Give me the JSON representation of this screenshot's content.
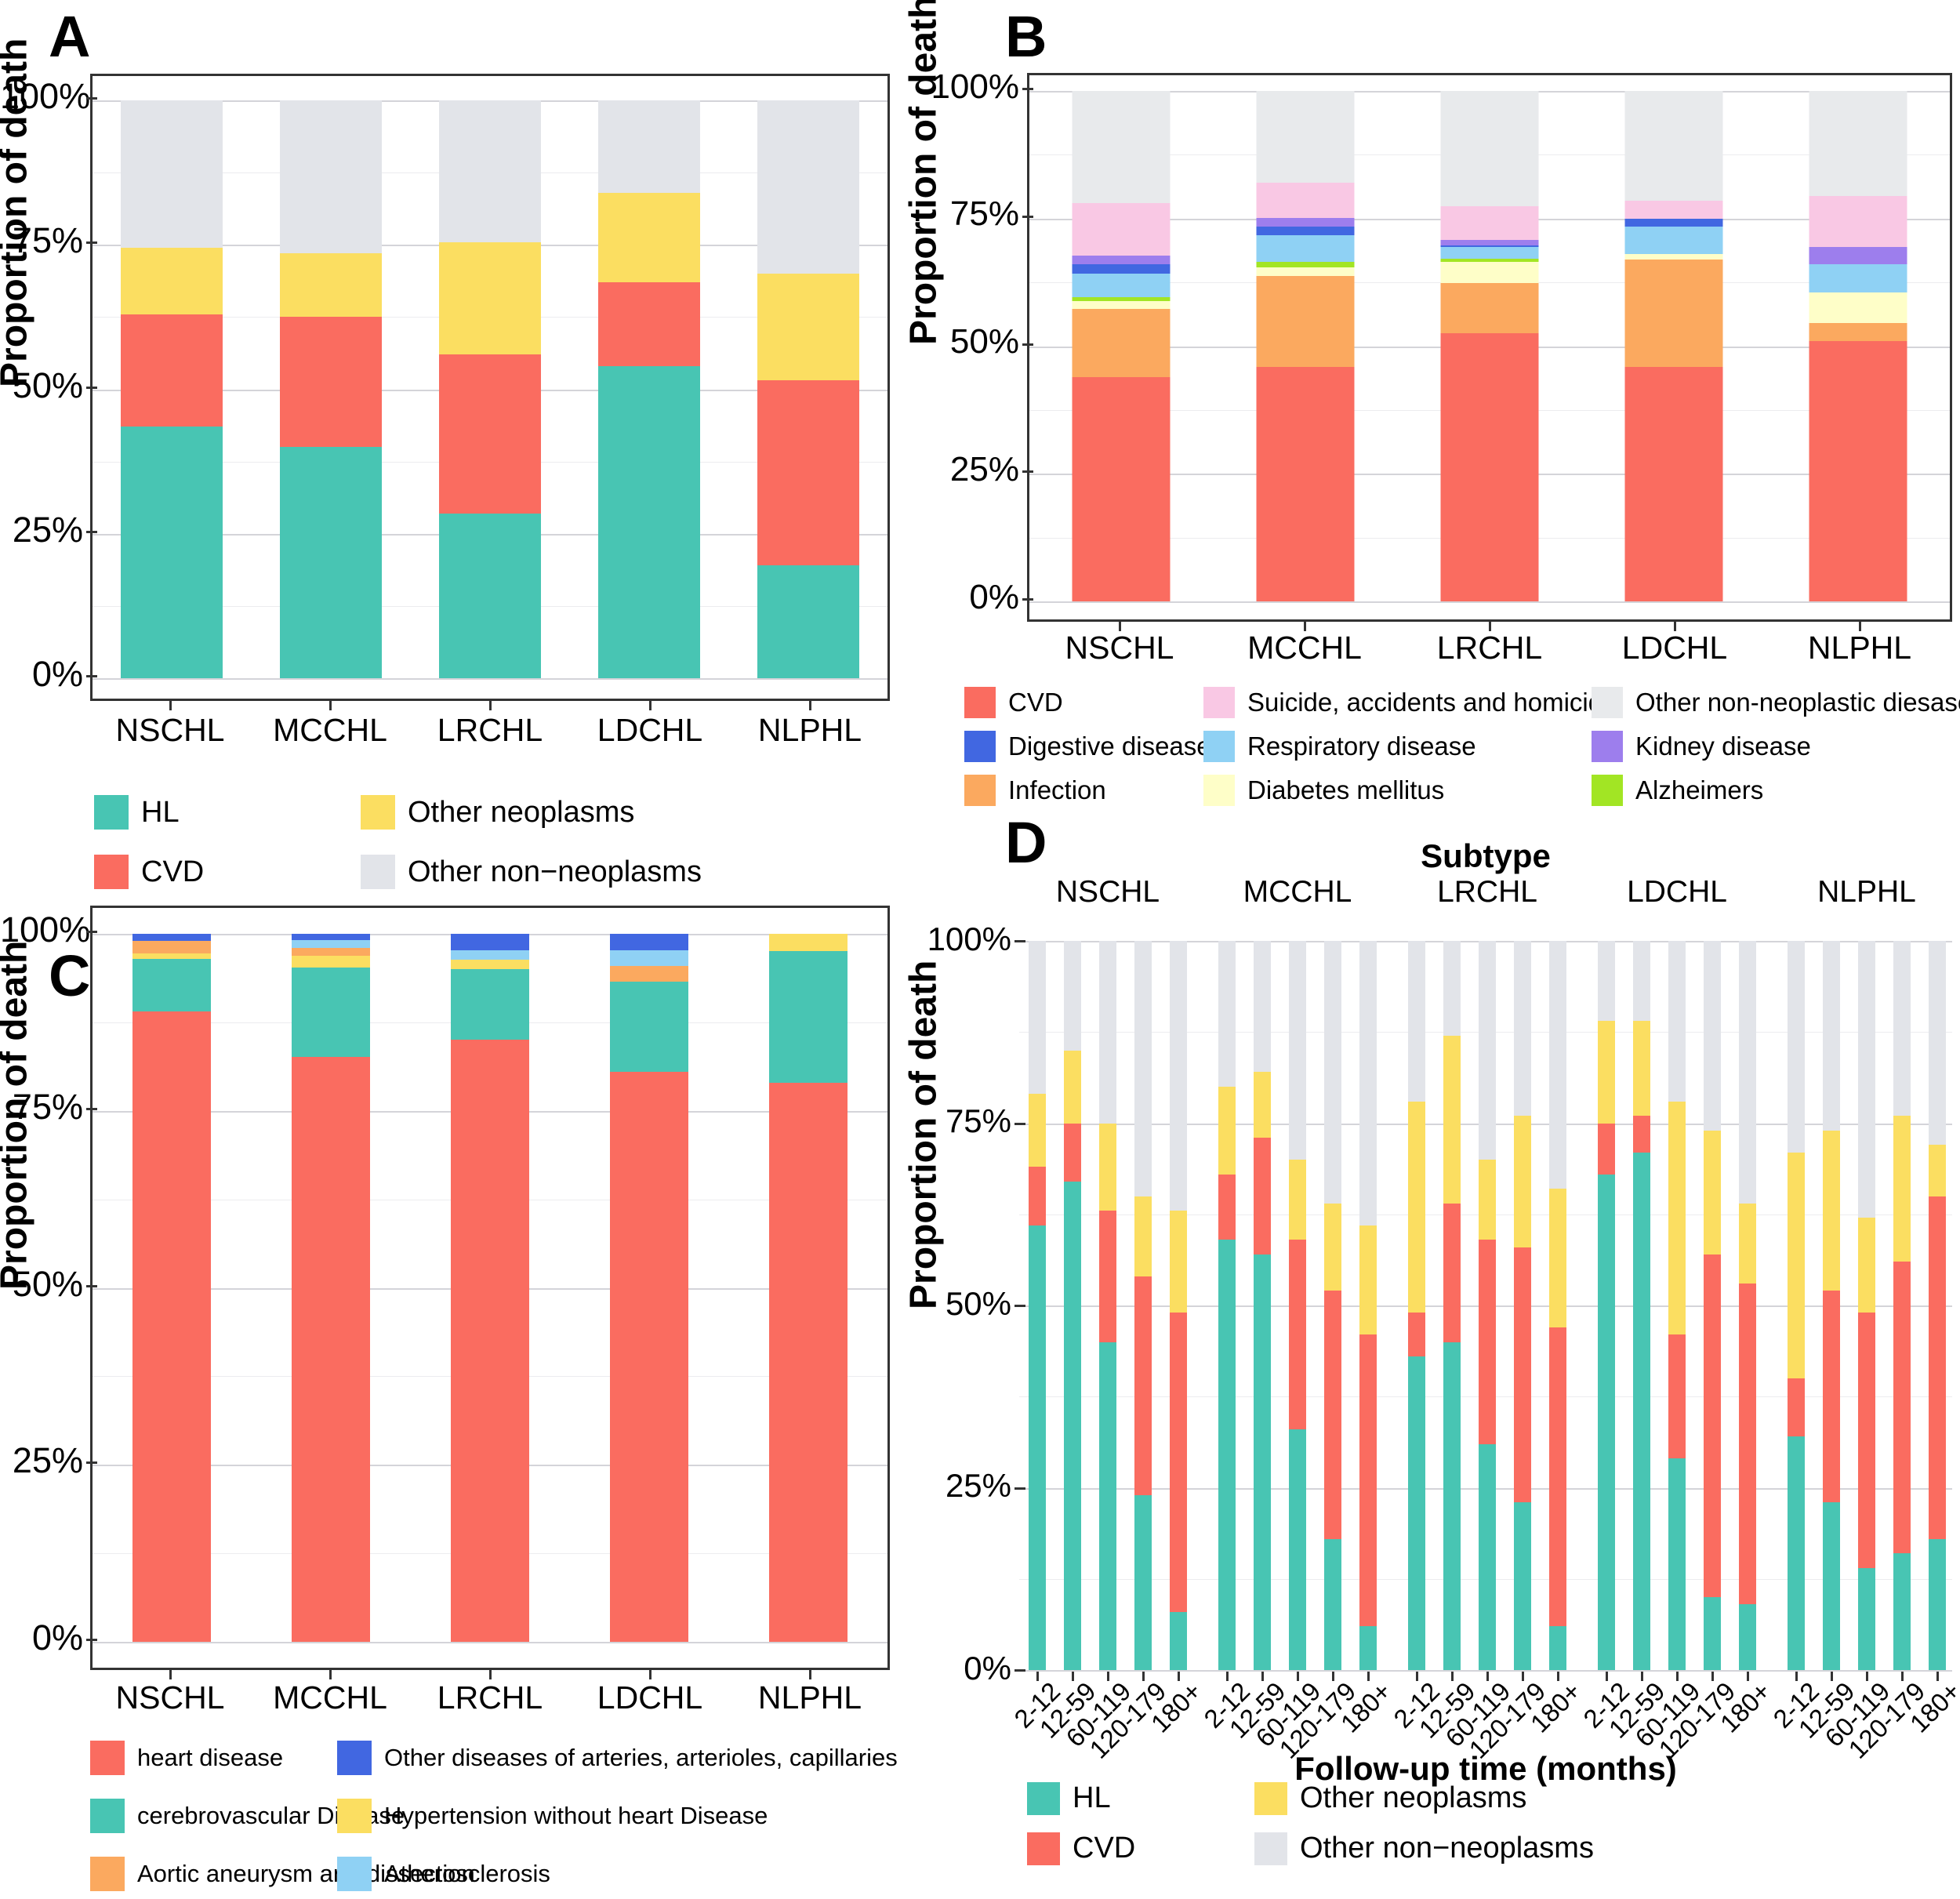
{
  "figure": {
    "panel_labels": [
      "A",
      "B",
      "C",
      "D"
    ],
    "y_axis_title": "Proportion of death",
    "y_ticks": [
      "0%",
      "25%",
      "50%",
      "75%",
      "100%"
    ]
  },
  "chart_data": [
    {
      "type": "bar",
      "panel_label": "A",
      "stacked": true,
      "ylabel": "Proportion of death",
      "xlabel": "",
      "ylim": [
        0,
        100
      ],
      "y_ticks": [
        "0%",
        "25%",
        "50%",
        "75%",
        "100%"
      ],
      "grid": true,
      "legend_position": "bottom",
      "categories": [
        "NSCHL",
        "MCCHL",
        "LRCHL",
        "LDCHL",
        "NLPHL"
      ],
      "series": [
        {
          "name": "HL",
          "color": "#48C5B3",
          "values": [
            43.5,
            40,
            28.5,
            54,
            19.5
          ]
        },
        {
          "name": "CVD",
          "color": "#FA6C60",
          "values": [
            19.5,
            22.5,
            27.5,
            14.5,
            32
          ]
        },
        {
          "name": "Other neoplasms",
          "color": "#FBDE61",
          "values": [
            11.5,
            11,
            19.5,
            15.5,
            18.5
          ]
        },
        {
          "name": "Other non−neoplasms",
          "color": "#E2E4E9",
          "values": [
            25.5,
            26.5,
            24.5,
            16,
            30
          ]
        }
      ]
    },
    {
      "type": "bar",
      "panel_label": "B",
      "stacked": true,
      "ylabel": "Proportion of death",
      "xlabel": "",
      "ylim": [
        0,
        100
      ],
      "y_ticks": [
        "0%",
        "25%",
        "50%",
        "75%",
        "100%"
      ],
      "grid": true,
      "legend_position": "bottom",
      "categories": [
        "NSCHL",
        "MCCHL",
        "LRCHL",
        "LDCHL",
        "NLPHL"
      ],
      "series": [
        {
          "name": "CVD",
          "color": "#FA6C60",
          "values": [
            44,
            46,
            52.5,
            46,
            51
          ]
        },
        {
          "name": "Infection",
          "color": "#FBA95F",
          "values": [
            13.3,
            17.7,
            9.8,
            21,
            3.5
          ]
        },
        {
          "name": "Diabetes mellitus",
          "color": "#FEFEC8",
          "values": [
            1.6,
            1.8,
            4.2,
            1.0,
            6.0
          ]
        },
        {
          "name": "Alzheimers",
          "color": "#A2E524",
          "values": [
            0.7,
            1.0,
            0.6,
            0,
            0
          ]
        },
        {
          "name": "Respiratory disease",
          "color": "#8FD1F4",
          "values": [
            4.6,
            5.3,
            2.3,
            5.5,
            5.5
          ]
        },
        {
          "name": "Digestive disease",
          "color": "#4167E1",
          "values": [
            1.8,
            1.6,
            0.4,
            1.5,
            0
          ]
        },
        {
          "name": "Kidney disease",
          "color": "#9D7EED",
          "values": [
            1.8,
            1.8,
            1.1,
            0,
            3.5
          ]
        },
        {
          "name": "Suicide, accidents and homicide",
          "color": "#F9C8E4",
          "values": [
            10.2,
            6.9,
            6.6,
            3.5,
            10
          ]
        },
        {
          "name": "Other non-neoplastic diesases",
          "color": "#E8EAEC",
          "values": [
            22,
            17.9,
            22.5,
            21.5,
            20.5
          ]
        }
      ]
    },
    {
      "type": "bar",
      "panel_label": "C",
      "stacked": true,
      "ylabel": "Proportion of death",
      "xlabel": "",
      "ylim": [
        0,
        100
      ],
      "y_ticks": [
        "0%",
        "25%",
        "50%",
        "75%",
        "100%"
      ],
      "grid": true,
      "legend_position": "bottom",
      "categories": [
        "NSCHL",
        "MCCHL",
        "LRCHL",
        "LDCHL",
        "NLPHL"
      ],
      "series": [
        {
          "name": "heart disease",
          "color": "#FA6C60",
          "values": [
            89,
            82.6,
            85,
            80.5,
            79
          ]
        },
        {
          "name": "cerebrovascular Disease",
          "color": "#48C5B3",
          "values": [
            7.5,
            12.6,
            10,
            12.8,
            18.6
          ]
        },
        {
          "name": "Hypertension without heart Disease",
          "color": "#FBDE61",
          "values": [
            0.7,
            1.7,
            1.3,
            0,
            2.4
          ]
        },
        {
          "name": "Aortic aneurysm and dissection",
          "color": "#FBA95F",
          "values": [
            1.8,
            1.1,
            0,
            2.2,
            0
          ]
        },
        {
          "name": "Atherosclerosis",
          "color": "#8FD1F4",
          "values": [
            0,
            1.1,
            1.4,
            2.2,
            0
          ]
        },
        {
          "name": "Other diseases of arteries, arterioles, capillaries",
          "color": "#4167E1",
          "values": [
            1.0,
            0.9,
            2.3,
            2.3,
            0
          ]
        }
      ]
    },
    {
      "type": "bar",
      "panel_label": "D",
      "stacked": true,
      "facet_title": "Subtype",
      "ylabel": "Proportion of death",
      "xlabel": "Follow-up time (months)",
      "ylim": [
        0,
        100
      ],
      "y_ticks": [
        "0%",
        "25%",
        "50%",
        "75%",
        "100%"
      ],
      "grid": true,
      "legend_position": "bottom",
      "groups": [
        "NSCHL",
        "MCCHL",
        "LRCHL",
        "LDCHL",
        "NLPHL"
      ],
      "bins": [
        "2-12",
        "12-59",
        "60-119",
        "120-179",
        "180+"
      ],
      "series": [
        {
          "name": "HL",
          "color": "#48C5B3",
          "values": [
            [
              61,
              67,
              45,
              24,
              8
            ],
            [
              59,
              57,
              33,
              18,
              6
            ],
            [
              43,
              45,
              31,
              23,
              6
            ],
            [
              68,
              71,
              29,
              10,
              9
            ],
            [
              32,
              23,
              14,
              16,
              18
            ]
          ]
        },
        {
          "name": "CVD",
          "color": "#FA6C60",
          "values": [
            [
              8,
              8,
              18,
              30,
              41
            ],
            [
              9,
              16,
              26,
              34,
              40
            ],
            [
              6,
              19,
              28,
              35,
              41
            ],
            [
              7,
              5,
              17,
              47,
              44
            ],
            [
              8,
              29,
              35,
              40,
              47
            ]
          ]
        },
        {
          "name": "Other neoplasms",
          "color": "#FBDE61",
          "values": [
            [
              10,
              10,
              12,
              11,
              14
            ],
            [
              12,
              9,
              11,
              12,
              15
            ],
            [
              29,
              23,
              11,
              18,
              19
            ],
            [
              14,
              13,
              32,
              17,
              11
            ],
            [
              31,
              22,
              13,
              20,
              7
            ]
          ]
        },
        {
          "name": "Other non−neoplasms",
          "color": "#E2E4E9",
          "values": [
            [
              21,
              15,
              25,
              35,
              37
            ],
            [
              20,
              18,
              30,
              36,
              39
            ],
            [
              22,
              13,
              30,
              24,
              34
            ],
            [
              11,
              11,
              22,
              26,
              36
            ],
            [
              29,
              26,
              38,
              24,
              28
            ]
          ]
        }
      ]
    }
  ]
}
